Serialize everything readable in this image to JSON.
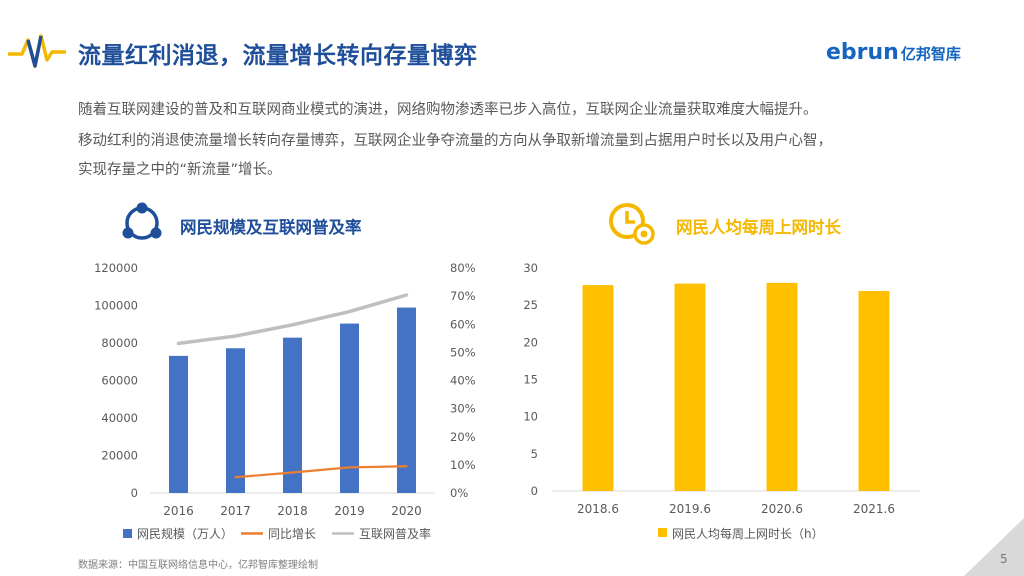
{
  "header": {
    "title": "流量红利消退，流量增长转向存量博弈",
    "logo_en": "ebrun",
    "logo_cn": "亿邦智库"
  },
  "intro": {
    "line1": "随着互联网建设的普及和互联网商业模式的演进，网络购物渗透率已步入高位，互联网企业流量获取难度大幅提升。",
    "line2": "移动红利的消退使流量增长转向存量博弈，互联网企业争夺流量的方向从争取新增流量到占据用户时长以及用户心智，",
    "line3": "实现存量之中的“新流量”增长。"
  },
  "left_panel": {
    "title": "网民规模及互联网普及率",
    "icon": "network-nodes-icon"
  },
  "right_panel": {
    "title": "网民人均每周上网时长",
    "icon": "clock-icon"
  },
  "colors": {
    "blue": "#4472C4",
    "orange": "#ED7D31",
    "gray": "#BFBFBF",
    "yellow": "#FFC000",
    "title": "#1F4E9A"
  },
  "chart_data": [
    {
      "type": "bar",
      "categories": [
        "2016",
        "2017",
        "2018",
        "2019",
        "2020"
      ],
      "series": [
        {
          "name": "网民规模（万人）",
          "kind": "bar",
          "axis": "left",
          "values": [
            73125,
            77198,
            82851,
            90359,
            98899
          ]
        },
        {
          "name": "同比增长",
          "kind": "line",
          "axis": "right",
          "values": [
            null,
            0.056,
            0.073,
            0.091,
            0.095
          ]
        },
        {
          "name": "互联网普及率",
          "kind": "line",
          "axis": "right",
          "values": [
            0.532,
            0.558,
            0.598,
            0.645,
            0.704
          ]
        }
      ],
      "ylim": [
        0,
        120000
      ],
      "yticks": [
        "0",
        "20000",
        "40000",
        "60000",
        "80000",
        "100000",
        "120000"
      ],
      "y2lim": [
        0,
        0.8
      ],
      "y2ticks": [
        "0%",
        "10%",
        "20%",
        "30%",
        "40%",
        "50%",
        "60%",
        "70%",
        "80%"
      ],
      "legend": "bottom"
    },
    {
      "type": "bar",
      "categories": [
        "2018.6",
        "2019.6",
        "2020.6",
        "2021.6"
      ],
      "series": [
        {
          "name": "网民人均每周上网时长（h）",
          "values": [
            27.7,
            27.9,
            28.0,
            26.9
          ]
        }
      ],
      "ylim": [
        0,
        30
      ],
      "yticks": [
        "0",
        "5",
        "10",
        "15",
        "20",
        "25",
        "30"
      ],
      "legend": "bottom"
    }
  ],
  "footer": {
    "source": "数据来源：中国互联网络信息中心，亿邦智库整理绘制",
    "page": "5"
  }
}
